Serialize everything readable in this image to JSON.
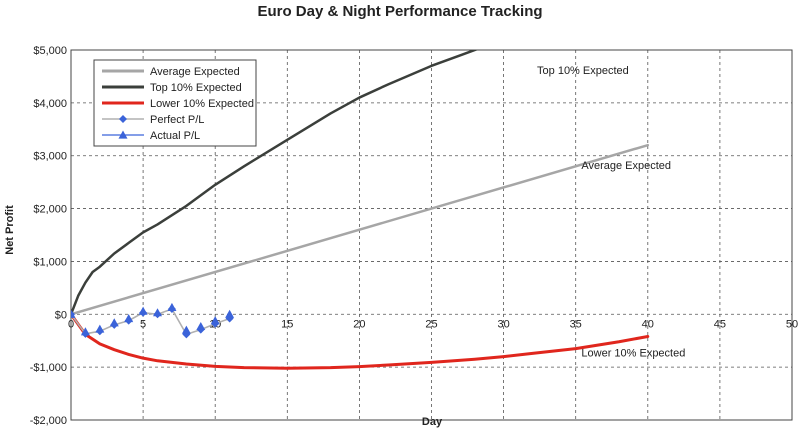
{
  "chart_data": {
    "type": "line",
    "title": "Euro Day & Night Performance Tracking",
    "xlabel": "Day",
    "ylabel": "Net Profit",
    "xlim": [
      0,
      50
    ],
    "ylim": [
      -2000,
      5000
    ],
    "x_ticks": [
      0,
      5,
      10,
      15,
      20,
      25,
      30,
      35,
      40,
      45,
      50
    ],
    "y_ticks": [
      -2000,
      -1000,
      0,
      1000,
      2000,
      3000,
      4000,
      5000
    ],
    "y_tick_labels": [
      "-$2,000",
      "-$1,000",
      "$0",
      "$1,000",
      "$2,000",
      "$3,000",
      "$4,000",
      "$5,000"
    ],
    "grid": true,
    "legend_position": "top-left",
    "series": [
      {
        "name": "Average Expected",
        "color": "#a6a6a6",
        "style": "line",
        "x": [
          0,
          40
        ],
        "y": [
          0,
          3200
        ]
      },
      {
        "name": "Top 10% Expected",
        "color": "#3b3f3b",
        "style": "line",
        "x": [
          0,
          0.5,
          1,
          1.5,
          2,
          3,
          4,
          5,
          6,
          8,
          10,
          12,
          15,
          18,
          20,
          22,
          25,
          27,
          30,
          33.5
        ],
        "y": [
          0,
          350,
          600,
          800,
          900,
          1150,
          1350,
          1550,
          1700,
          2050,
          2450,
          2800,
          3300,
          3800,
          4100,
          4350,
          4700,
          4900,
          5200,
          5550
        ]
      },
      {
        "name": "Lower 10% Expected",
        "color": "#e0261d",
        "style": "line",
        "x": [
          0,
          1,
          2,
          3,
          4,
          5,
          6,
          8,
          10,
          12,
          15,
          18,
          20,
          22,
          25,
          28,
          30,
          32,
          35,
          38,
          40
        ],
        "y": [
          0,
          -380,
          -560,
          -670,
          -760,
          -830,
          -880,
          -940,
          -985,
          -1010,
          -1020,
          -1010,
          -990,
          -960,
          -910,
          -850,
          -800,
          -740,
          -650,
          -520,
          -420
        ]
      },
      {
        "name": "Perfect P/L",
        "color": "#b0b0b0",
        "marker": "diamond",
        "marker_color": "#3b63d9",
        "style": "line+markers",
        "x": [
          0,
          1,
          2,
          3,
          4,
          5,
          6,
          7,
          8,
          9,
          10,
          11
        ],
        "y": [
          0,
          -370,
          -320,
          -200,
          -120,
          30,
          0,
          100,
          -380,
          -290,
          -180,
          -80
        ]
      },
      {
        "name": "Actual P/L",
        "color": "#3b63d9",
        "marker": "triangle",
        "marker_color": "#3b63d9",
        "style": "markers",
        "x": [
          0,
          1,
          2,
          3,
          4,
          5,
          6,
          7,
          8,
          9,
          10,
          11
        ],
        "y": [
          0,
          -330,
          -280,
          -160,
          -80,
          60,
          30,
          130,
          -300,
          -230,
          -120,
          0
        ]
      }
    ],
    "annotations": [
      {
        "text": "Top 10% Expected",
        "x": 35.5,
        "y": 4550
      },
      {
        "text": "Average Expected",
        "x": 38.5,
        "y": 2750
      },
      {
        "text": "Lower 10% Expected",
        "x": 39,
        "y": -800
      }
    ]
  }
}
